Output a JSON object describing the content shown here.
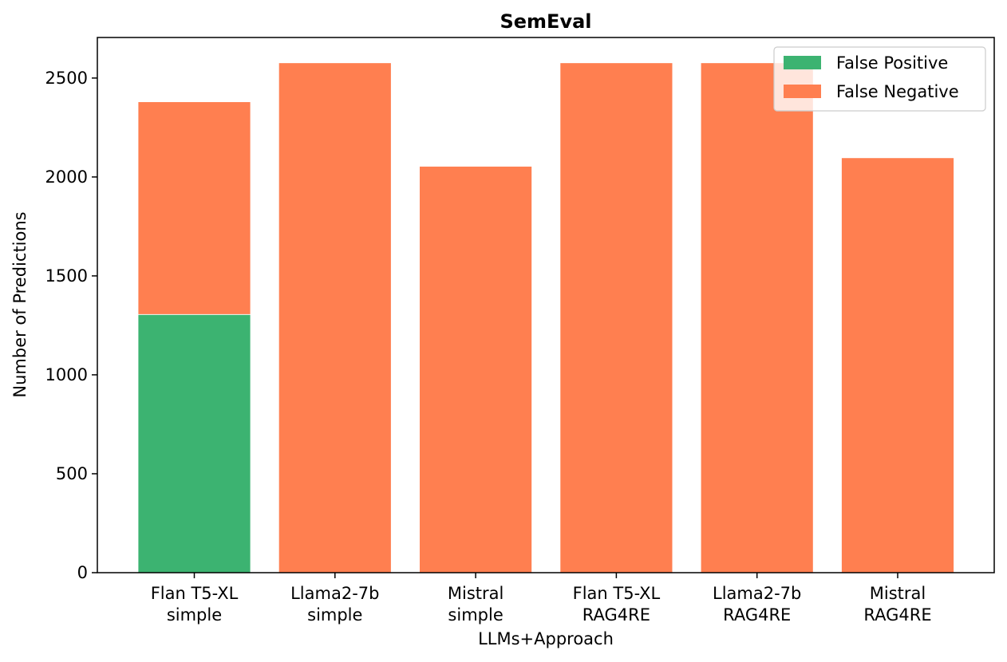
{
  "chart_data": {
    "type": "bar",
    "stacked": true,
    "title": "SemEval",
    "xlabel": "LLMs+Approach",
    "ylabel": "Number of Predictions",
    "categories": [
      [
        "Flan T5-XL",
        "simple"
      ],
      [
        "Llama2-7b",
        "simple"
      ],
      [
        "Mistral",
        "simple"
      ],
      [
        "Flan T5-XL",
        "RAG4RE"
      ],
      [
        "Llama2-7b",
        "RAG4RE"
      ],
      [
        "Mistral",
        "RAG4RE"
      ]
    ],
    "series": [
      {
        "name": "False Positive",
        "color": "#3cb371",
        "values": [
          1305,
          0,
          0,
          0,
          0,
          0
        ]
      },
      {
        "name": "False Negative",
        "color": "#ff7f50",
        "values": [
          1075,
          2577,
          2054,
          2577,
          2577,
          2097
        ]
      }
    ],
    "ylim": [
      0,
      2705
    ],
    "yticks": [
      0,
      500,
      1000,
      1500,
      2000,
      2500
    ],
    "grid": false,
    "legend_position": "top-right"
  }
}
